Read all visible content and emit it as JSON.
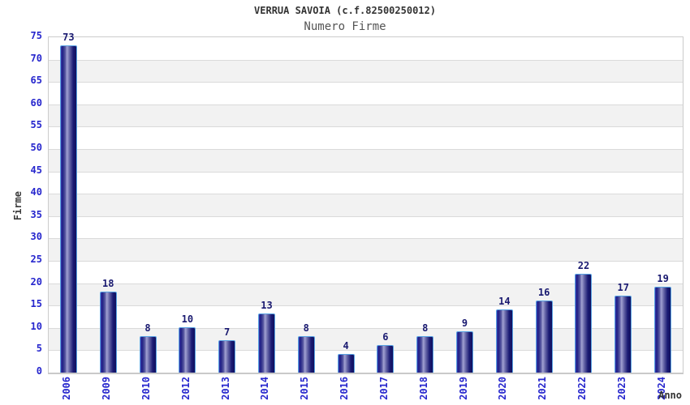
{
  "chart_data": {
    "type": "bar",
    "title": "VERRUA SAVOIA (c.f.82500250012)",
    "subtitle": "Numero Firme",
    "xlabel": "Anno",
    "ylabel": "Firme",
    "categories": [
      "2006",
      "2009",
      "2010",
      "2012",
      "2013",
      "2014",
      "2015",
      "2016",
      "2017",
      "2018",
      "2019",
      "2020",
      "2021",
      "2022",
      "2023",
      "2024"
    ],
    "values": [
      73,
      18,
      8,
      10,
      7,
      13,
      8,
      4,
      6,
      8,
      9,
      14,
      16,
      22,
      17,
      19
    ],
    "ylim": [
      0,
      75
    ],
    "ytick_step": 5,
    "grid": true,
    "banded_background": true,
    "legend": "none",
    "bar_value_labels": true,
    "colors": {
      "tick_label": "#2626cd",
      "value_label": "#191970",
      "bar_edge": "#58a2e2",
      "bar_dark": "#1c1c80",
      "bar_highlight": "#a2a2d2",
      "band_gray": "#f2f2f2",
      "gridline": "#dadada",
      "plot_border": "#cccccc",
      "title": "#333333",
      "subtitle": "#555555",
      "axis_title": "#3a3a3a"
    }
  }
}
